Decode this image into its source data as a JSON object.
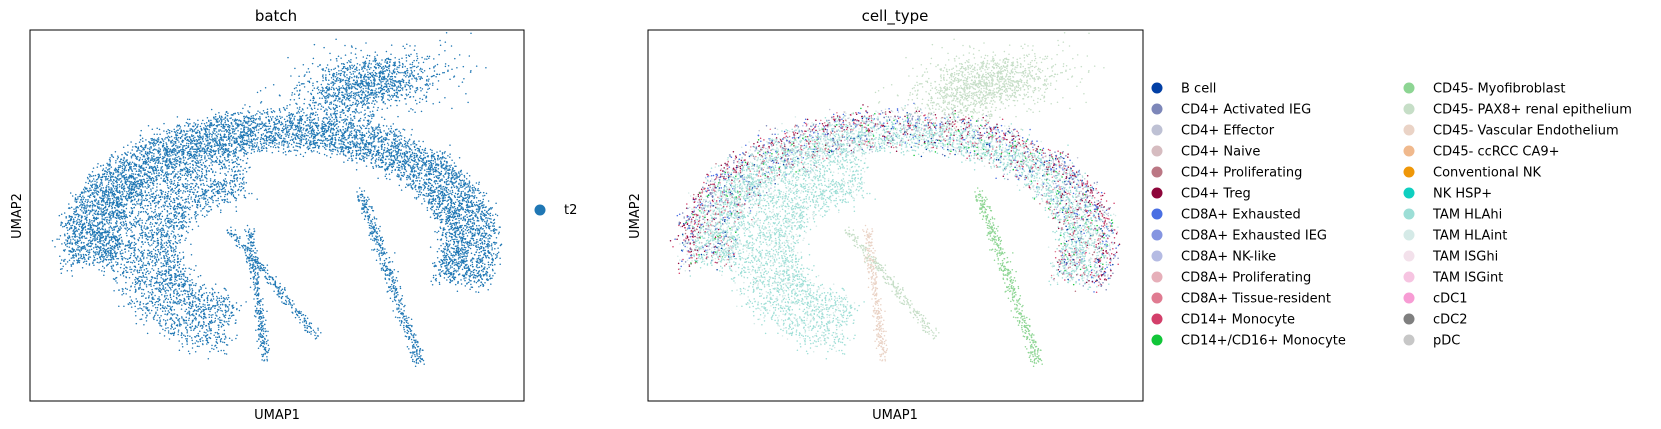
{
  "chart_data": [
    {
      "type": "scatter",
      "title": "batch",
      "xlabel": "UMAP1",
      "ylabel": "UMAP2",
      "grid": false,
      "legend_position": "right",
      "legend": [
        {
          "label": "t2",
          "color": "#1f77b4"
        }
      ]
    },
    {
      "type": "scatter",
      "title": "cell_type",
      "xlabel": "UMAP1",
      "ylabel": "UMAP2",
      "grid": false,
      "legend_position": "right",
      "legend": [
        {
          "label": "B cell",
          "color": "#023fa5"
        },
        {
          "label": "CD4+ Activated IEG",
          "color": "#7d87b9"
        },
        {
          "label": "CD4+ Effector",
          "color": "#bec1d4"
        },
        {
          "label": "CD4+ Naive",
          "color": "#d6bcc0"
        },
        {
          "label": "CD4+ Proliferating",
          "color": "#bb7784"
        },
        {
          "label": "CD4+ Treg",
          "color": "#8e063b"
        },
        {
          "label": "CD8A+ Exhausted",
          "color": "#4a6fe3"
        },
        {
          "label": "CD8A+ Exhausted IEG",
          "color": "#8595e1"
        },
        {
          "label": "CD8A+ NK-like",
          "color": "#b5bbe3"
        },
        {
          "label": "CD8A+ Proliferating",
          "color": "#e6afb9"
        },
        {
          "label": "CD8A+ Tissue-resident",
          "color": "#e07b91"
        },
        {
          "label": "CD14+ Monocyte",
          "color": "#d33f6a"
        },
        {
          "label": "CD14+/CD16+ Monocyte",
          "color": "#11c638"
        },
        {
          "label": "CD45- Myofibroblast",
          "color": "#8dd593"
        },
        {
          "label": "CD45- PAX8+ renal epithelium",
          "color": "#c6dec7"
        },
        {
          "label": "CD45- Vascular Endothelium",
          "color": "#ead3c6"
        },
        {
          "label": "CD45- ccRCC CA9+",
          "color": "#f0b98d"
        },
        {
          "label": "Conventional NK",
          "color": "#ef9708"
        },
        {
          "label": "NK HSP+",
          "color": "#0fcfc0"
        },
        {
          "label": "TAM HLAhi",
          "color": "#9cded6"
        },
        {
          "label": "TAM HLAint",
          "color": "#d5eae7"
        },
        {
          "label": "TAM ISGhi",
          "color": "#f3e1eb"
        },
        {
          "label": "TAM ISGint",
          "color": "#f6c4e1"
        },
        {
          "label": "cDC1",
          "color": "#f79cd4"
        },
        {
          "label": "cDC2",
          "color": "#7f7f7f"
        },
        {
          "label": "pDC",
          "color": "#c7c7c7"
        }
      ]
    }
  ]
}
